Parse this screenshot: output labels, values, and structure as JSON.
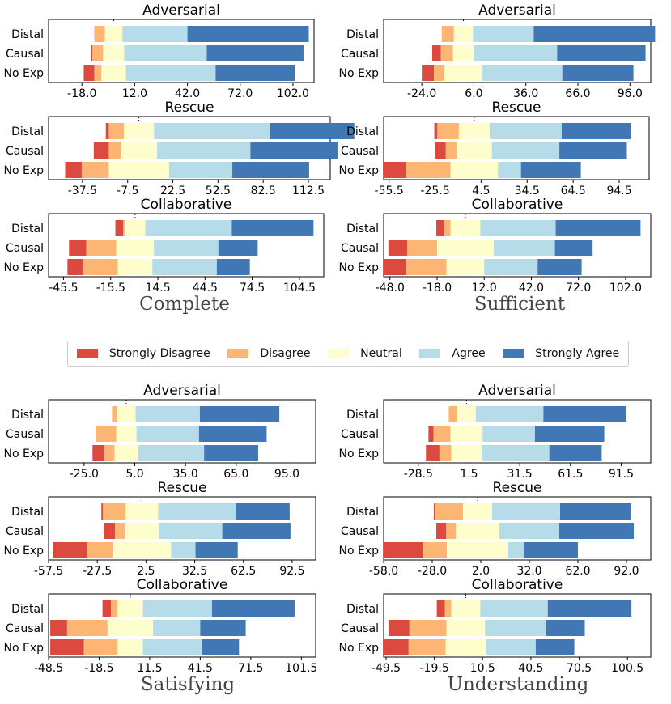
{
  "legend": [
    {
      "label": "Strongly Disagree",
      "color": "#dc4a3f"
    },
    {
      "label": "Disagree",
      "color": "#fdb574"
    },
    {
      "label": "Neutral",
      "color": "#fefdcc"
    },
    {
      "label": "Agree",
      "color": "#b6dcea"
    },
    {
      "label": "Strongly Agree",
      "color": "#4277b6"
    }
  ],
  "group_titles": [
    "Complete",
    "Sufficient",
    "Satisfying",
    "Understanding"
  ],
  "chart_data": [
    {
      "type": "bar",
      "orientation": "horizontal-stacked-diverging",
      "title": "Adversarial",
      "group": "Complete",
      "categories": [
        "Distal",
        "Causal",
        "No Exp"
      ],
      "xlim": [
        -37,
        114
      ],
      "ticks": [
        "-18.0",
        "12.0",
        "42.0",
        "72.0",
        "102.0"
      ],
      "series": [
        {
          "name": "Strongly Disagree",
          "values": [
            0,
            1,
            6
          ]
        },
        {
          "name": "Disagree",
          "values": [
            6,
            6,
            4
          ]
        },
        {
          "name": "Neutral",
          "values": [
            10,
            12,
            14
          ]
        },
        {
          "name": "Agree",
          "values": [
            37,
            47,
            51
          ]
        },
        {
          "name": "Strongly Agree",
          "values": [
            69,
            55,
            45
          ]
        }
      ]
    },
    {
      "type": "bar",
      "orientation": "horizontal-stacked-diverging",
      "title": "Adversarial",
      "group": "Sufficient",
      "categories": [
        "Distal",
        "Causal",
        "No Exp"
      ],
      "xlim": [
        -46,
        108
      ],
      "ticks": [
        "-24.0",
        "6.0",
        "36.0",
        "66.0",
        "96.0"
      ],
      "series": [
        {
          "name": "Strongly Disagree",
          "values": [
            0,
            5,
            7
          ]
        },
        {
          "name": "Disagree",
          "values": [
            7,
            7,
            6
          ]
        },
        {
          "name": "Neutral",
          "values": [
            11,
            12,
            22
          ]
        },
        {
          "name": "Agree",
          "values": [
            35,
            48,
            46
          ]
        },
        {
          "name": "Strongly Agree",
          "values": [
            70,
            51,
            41
          ]
        }
      ]
    },
    {
      "type": "bar",
      "orientation": "horizontal-stacked-diverging",
      "title": "Rescue",
      "group": "Complete",
      "categories": [
        "Distal",
        "Causal",
        "No Exp"
      ],
      "xlim": [
        -60,
        127
      ],
      "ticks": [
        "-37.5",
        "-7.5",
        "22.5",
        "52.5",
        "82.5",
        "112.5"
      ],
      "series": [
        {
          "name": "Strongly Disagree",
          "values": [
            2,
            10,
            11
          ]
        },
        {
          "name": "Disagree",
          "values": [
            10,
            8,
            18
          ]
        },
        {
          "name": "Neutral",
          "values": [
            20,
            24,
            40
          ]
        },
        {
          "name": "Agree",
          "values": [
            77,
            62,
            42
          ]
        },
        {
          "name": "Strongly Agree",
          "values": [
            56,
            58,
            51
          ]
        }
      ]
    },
    {
      "type": "bar",
      "orientation": "horizontal-stacked-diverging",
      "title": "Rescue",
      "group": "Sufficient",
      "categories": [
        "Distal",
        "Causal",
        "No Exp"
      ],
      "xlim": [
        -59,
        114
      ],
      "ticks": [
        "-55.5",
        "-25.5",
        "4.5",
        "34.5",
        "64.5",
        "94.5"
      ],
      "series": [
        {
          "name": "Strongly Disagree",
          "values": [
            2,
            7,
            15
          ]
        },
        {
          "name": "Disagree",
          "values": [
            14,
            7,
            29
          ]
        },
        {
          "name": "Neutral",
          "values": [
            20,
            23,
            31
          ]
        },
        {
          "name": "Agree",
          "values": [
            47,
            44,
            15
          ]
        },
        {
          "name": "Strongly Agree",
          "values": [
            45,
            44,
            39
          ]
        }
      ]
    },
    {
      "type": "bar",
      "orientation": "horizontal-stacked-diverging",
      "title": "Collaborative",
      "group": "Complete",
      "categories": [
        "Distal",
        "Causal",
        "No Exp"
      ],
      "xlim": [
        -55,
        120
      ],
      "ticks": [
        "-45.5",
        "-15.5",
        "14.5",
        "44.5",
        "74.5",
        "104.5"
      ],
      "series": [
        {
          "name": "Strongly Disagree",
          "values": [
            5,
            11,
            10
          ]
        },
        {
          "name": "Disagree",
          "values": [
            1,
            19,
            22
          ]
        },
        {
          "name": "Neutral",
          "values": [
            13,
            24,
            22
          ]
        },
        {
          "name": "Agree",
          "values": [
            55,
            41,
            41
          ]
        },
        {
          "name": "Strongly Agree",
          "values": [
            52,
            25,
            21
          ]
        }
      ]
    },
    {
      "type": "bar",
      "orientation": "horizontal-stacked-diverging",
      "title": "Collaborative",
      "group": "Sufficient",
      "categories": [
        "Distal",
        "Causal",
        "No Exp"
      ],
      "xlim": [
        -52,
        118
      ],
      "ticks": [
        "-48.0",
        "-18.0",
        "12.0",
        "42.0",
        "72.0",
        "102.0"
      ],
      "series": [
        {
          "name": "Strongly Disagree",
          "values": [
            5,
            12,
            14
          ]
        },
        {
          "name": "Disagree",
          "values": [
            4,
            19,
            26
          ]
        },
        {
          "name": "Neutral",
          "values": [
            19,
            36,
            24
          ]
        },
        {
          "name": "Agree",
          "values": [
            48,
            39,
            34
          ]
        },
        {
          "name": "Strongly Agree",
          "values": [
            54,
            24,
            28
          ]
        }
      ]
    },
    {
      "type": "bar",
      "orientation": "horizontal-stacked-diverging",
      "title": "Adversarial",
      "group": "Satisfying",
      "categories": [
        "Distal",
        "Causal",
        "No Exp"
      ],
      "xlim": [
        -46,
        112
      ],
      "ticks": [
        "-25.0",
        "5.0",
        "35.0",
        "65.0",
        "95.0"
      ],
      "series": [
        {
          "name": "Strongly Disagree",
          "values": [
            0,
            0,
            7
          ]
        },
        {
          "name": "Disagree",
          "values": [
            3,
            12,
            6
          ]
        },
        {
          "name": "Neutral",
          "values": [
            11,
            12,
            14
          ]
        },
        {
          "name": "Agree",
          "values": [
            38,
            37,
            39
          ]
        },
        {
          "name": "Strongly Agree",
          "values": [
            47,
            40,
            32
          ]
        }
      ]
    },
    {
      "type": "bar",
      "orientation": "horizontal-stacked-diverging",
      "title": "Adversarial",
      "group": "Understanding",
      "categories": [
        "Distal",
        "Causal",
        "No Exp"
      ],
      "xlim": [
        -49,
        109
      ],
      "ticks": [
        "-28.5",
        "1.5",
        "31.5",
        "61.5",
        "91.5"
      ],
      "series": [
        {
          "name": "Strongly Disagree",
          "values": [
            0,
            3,
            8
          ]
        },
        {
          "name": "Disagree",
          "values": [
            5,
            10,
            7
          ]
        },
        {
          "name": "Neutral",
          "values": [
            11,
            19,
            18
          ]
        },
        {
          "name": "Agree",
          "values": [
            40,
            31,
            40
          ]
        },
        {
          "name": "Strongly Agree",
          "values": [
            49,
            41,
            31
          ]
        }
      ]
    },
    {
      "type": "bar",
      "orientation": "horizontal-stacked-diverging",
      "title": "Rescue",
      "group": "Satisfying",
      "categories": [
        "Distal",
        "Causal",
        "No Exp"
      ],
      "xlim": [
        -57.5,
        107
      ],
      "ticks": [
        "-57.5",
        "-27.5",
        "2.5",
        "32.5",
        "62.5",
        "92.5"
      ],
      "series": [
        {
          "name": "Strongly Disagree",
          "values": [
            1,
            7,
            21
          ]
        },
        {
          "name": "Disagree",
          "values": [
            14,
            6,
            16
          ]
        },
        {
          "name": "Neutral",
          "values": [
            20,
            21,
            36
          ]
        },
        {
          "name": "Agree",
          "values": [
            48,
            39,
            15
          ]
        },
        {
          "name": "Strongly Agree",
          "values": [
            33,
            42,
            26
          ]
        }
      ]
    },
    {
      "type": "bar",
      "orientation": "horizontal-stacked-diverging",
      "title": "Rescue",
      "group": "Understanding",
      "categories": [
        "Distal",
        "Causal",
        "No Exp"
      ],
      "xlim": [
        -58,
        107
      ],
      "ticks": [
        "-58.0",
        "-28.0",
        "2.0",
        "32.0",
        "62.0",
        "92.0"
      ],
      "series": [
        {
          "name": "Strongly Disagree",
          "values": [
            1,
            6,
            24
          ]
        },
        {
          "name": "Disagree",
          "values": [
            17,
            6,
            15
          ]
        },
        {
          "name": "Neutral",
          "values": [
            18,
            27,
            38
          ]
        },
        {
          "name": "Agree",
          "values": [
            42,
            37,
            10
          ]
        },
        {
          "name": "Strongly Agree",
          "values": [
            44,
            46,
            33
          ]
        }
      ]
    },
    {
      "type": "bar",
      "orientation": "horizontal-stacked-diverging",
      "title": "Collaborative",
      "group": "Satisfying",
      "categories": [
        "Distal",
        "Causal",
        "No Exp"
      ],
      "xlim": [
        -48.5,
        110
      ],
      "ticks": [
        "-48.5",
        "-18.5",
        "11.5",
        "41.5",
        "71.5",
        "101.5"
      ],
      "series": [
        {
          "name": "Strongly Disagree",
          "values": [
            5,
            10,
            20
          ]
        },
        {
          "name": "Disagree",
          "values": [
            4,
            24,
            20
          ]
        },
        {
          "name": "Neutral",
          "values": [
            15,
            27,
            15
          ]
        },
        {
          "name": "Agree",
          "values": [
            41,
            28,
            35
          ]
        },
        {
          "name": "Strongly Agree",
          "values": [
            49,
            27,
            22
          ]
        }
      ]
    },
    {
      "type": "bar",
      "orientation": "horizontal-stacked-diverging",
      "title": "Collaborative",
      "group": "Understanding",
      "categories": [
        "Distal",
        "Causal",
        "No Exp"
      ],
      "xlim": [
        -51,
        115
      ],
      "ticks": [
        "-49.5",
        "-19.5",
        "10.5",
        "40.5",
        "70.5",
        "100.5"
      ],
      "series": [
        {
          "name": "Strongly Disagree",
          "values": [
            5,
            13,
            16
          ]
        },
        {
          "name": "Disagree",
          "values": [
            4,
            23,
            23
          ]
        },
        {
          "name": "Neutral",
          "values": [
            18,
            24,
            25
          ]
        },
        {
          "name": "Agree",
          "values": [
            42,
            38,
            31
          ]
        },
        {
          "name": "Strongly Agree",
          "values": [
            52,
            24,
            24
          ]
        }
      ]
    }
  ]
}
